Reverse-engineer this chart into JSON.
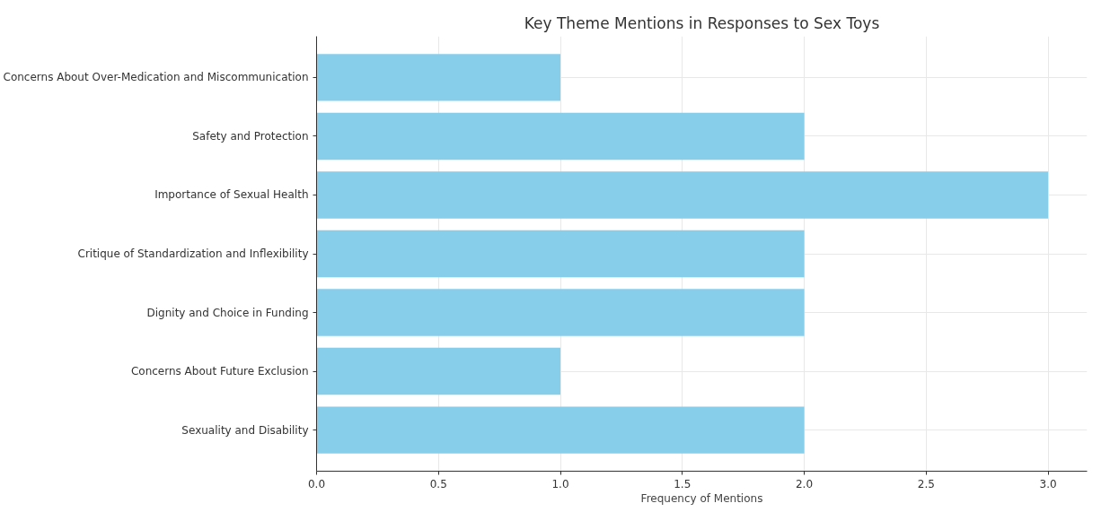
{
  "chart_data": {
    "type": "bar",
    "orientation": "horizontal",
    "title": "Key Theme Mentions in Responses to Sex Toys",
    "xlabel": "Frequency of Mentions",
    "categories": [
      "Concerns About Over-Medication and Miscommunication",
      "Safety and Protection",
      "Importance of Sexual Health",
      "Critique of Standardization and Inflexibility",
      "Dignity and Choice in Funding",
      "Concerns About Future Exclusion",
      "Sexuality and Disability"
    ],
    "values": [
      1,
      2,
      3,
      2,
      2,
      1,
      2
    ],
    "color": "#87ceeb",
    "xlim": [
      0,
      3.16
    ],
    "xticks": [
      {
        "value": 0,
        "label": "0.0"
      },
      {
        "value": 0.5,
        "label": "0.5"
      },
      {
        "value": 1,
        "label": "1.0"
      },
      {
        "value": 1.5,
        "label": "1.5"
      },
      {
        "value": 2,
        "label": "2.0"
      },
      {
        "value": 2.5,
        "label": "2.5"
      },
      {
        "value": 3,
        "label": "3.0"
      }
    ],
    "grid": true
  }
}
